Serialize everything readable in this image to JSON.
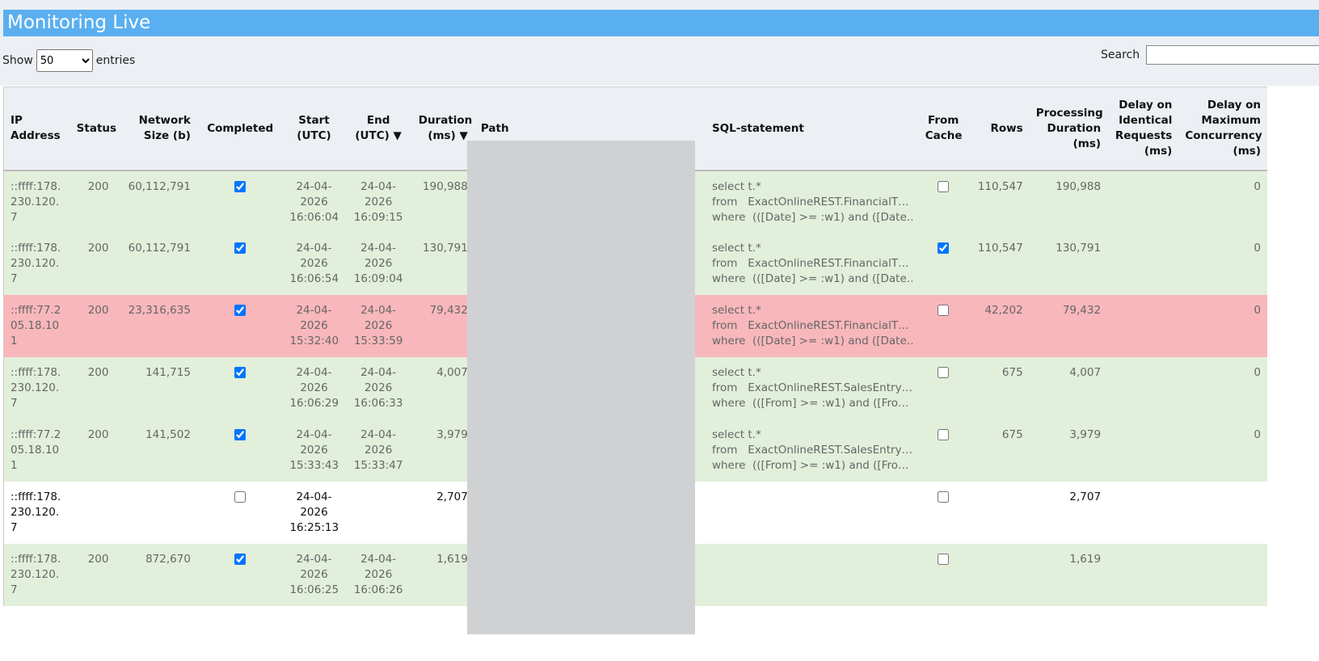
{
  "header": {
    "title": "Monitoring Live"
  },
  "controls": {
    "show_label": "Show",
    "page_size": "50",
    "entries_label": "entries",
    "search_label": "Search"
  },
  "table": {
    "columns": [
      "IP Address",
      "Status",
      "Network Size (b)",
      "Completed",
      "Start (UTC)",
      "End (UTC) ▼",
      "Duration (ms) ▼",
      "Path",
      "SQL-statement",
      "From Cache",
      "Rows",
      "Processing Duration (ms)",
      "Delay on Identical Requests (ms)",
      "Delay on Maximum Concurrency (ms)"
    ],
    "rows": [
      {
        "color": "#e2efda",
        "text_color": "#666666",
        "cells": [
          "::ffff:178.230.120.7",
          "200",
          "60,112,791",
          true,
          "24-04-2026 16:06:04",
          "24-04-2026 16:09:15",
          "190,988",
          null,
          [
            "select t.*",
            "from   ExactOnlineREST.FinancialT…",
            "where  (([Date] >= :w1) and ([Date…"
          ],
          false,
          "110,547",
          "190,988",
          null,
          "0"
        ]
      },
      {
        "color": "#e2efda",
        "text_color": "#666666",
        "cells": [
          "::ffff:178.230.120.7",
          "200",
          "60,112,791",
          true,
          "24-04-2026 16:06:54",
          "24-04-2026 16:09:04",
          "130,791",
          null,
          [
            "select t.*",
            "from   ExactOnlineREST.FinancialT…",
            "where  (([Date] >= :w1) and ([Date…"
          ],
          true,
          "110,547",
          "130,791",
          null,
          "0"
        ]
      },
      {
        "color": "#f8b7bb",
        "text_color": "#666666",
        "cells": [
          "::ffff:77.205.18.101",
          "200",
          "23,316,635",
          true,
          "24-04-2026 15:32:40",
          "24-04-2026 15:33:59",
          "79,432",
          null,
          [
            "select t.*",
            "from   ExactOnlineREST.FinancialT…",
            "where  (([Date] >= :w1) and ([Date…"
          ],
          false,
          "42,202",
          "79,432",
          null,
          "0"
        ]
      },
      {
        "color": "#e2efda",
        "text_color": "#666666",
        "cells": [
          "::ffff:178.230.120.7",
          "200",
          "141,715",
          true,
          "24-04-2026 16:06:29",
          "24-04-2026 16:06:33",
          "4,007",
          null,
          [
            "select t.*",
            "from   ExactOnlineREST.SalesEntry…",
            "where  (([From] >= :w1) and ([Fro…"
          ],
          false,
          "675",
          "4,007",
          null,
          "0"
        ]
      },
      {
        "color": "#e2efda",
        "text_color": "#666666",
        "cells": [
          "::ffff:77.205.18.101",
          "200",
          "141,502",
          true,
          "24-04-2026 15:33:43",
          "24-04-2026 15:33:47",
          "3,979",
          null,
          [
            "select t.*",
            "from   ExactOnlineREST.SalesEntry…",
            "where  (([From] >= :w1) and ([Fro…"
          ],
          false,
          "675",
          "3,979",
          null,
          "0"
        ]
      },
      {
        "color": "#ffffff",
        "text_color": "#111111",
        "cells": [
          "::ffff:178.230.120.7",
          null,
          null,
          false,
          "24-04-2026 16:25:13",
          null,
          "2,707",
          null,
          null,
          false,
          null,
          "2,707",
          null,
          null
        ]
      },
      {
        "color": "#e2efda",
        "text_color": "#666666",
        "cells": [
          "::ffff:178.230.120.7",
          "200",
          "872,670",
          true,
          "24-04-2026 16:06:25",
          "24-04-2026 16:06:26",
          "1,619",
          null,
          null,
          false,
          null,
          "1,619",
          null,
          null
        ]
      }
    ]
  }
}
